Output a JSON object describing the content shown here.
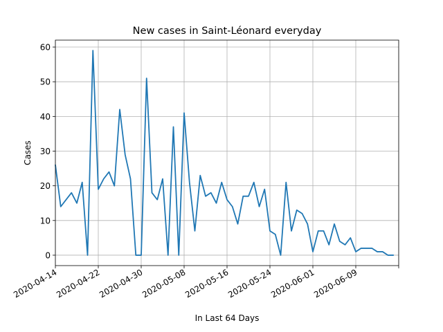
{
  "chart_data": {
    "type": "line",
    "title": "New cases in Saint-Léonard everyday",
    "xlabel": "In Last 64 Days",
    "ylabel": "Cases",
    "grid": true,
    "line_color": "#1f77b4",
    "xlim": [
      "2020-04-14",
      "2020-06-17"
    ],
    "ylim": [
      -3,
      62
    ],
    "x_ticks": [
      "2020-04-14",
      "2020-04-22",
      "2020-04-30",
      "2020-05-08",
      "2020-05-16",
      "2020-05-24",
      "2020-06-01",
      "2020-06-09",
      "2020-06-17"
    ],
    "x_tick_labels": [
      "2020-04-14",
      "2020-04-22",
      "2020-04-30",
      "2020-05-08",
      "2020-05-16",
      "2020-05-24",
      "2020-06-01",
      "2020-06-09",
      ""
    ],
    "y_ticks": [
      0,
      10,
      20,
      30,
      40,
      50,
      60
    ],
    "y_tick_labels": [
      "0",
      "10",
      "20",
      "30",
      "40",
      "50",
      "60"
    ],
    "series": [
      {
        "x": [
          "2020-04-14",
          "2020-04-15",
          "2020-04-16",
          "2020-04-17",
          "2020-04-18",
          "2020-04-19",
          "2020-04-20",
          "2020-04-21",
          "2020-04-22",
          "2020-04-23",
          "2020-04-24",
          "2020-04-25",
          "2020-04-26",
          "2020-04-27",
          "2020-04-28",
          "2020-04-29",
          "2020-04-30",
          "2020-05-01",
          "2020-05-02",
          "2020-05-03",
          "2020-05-04",
          "2020-05-05",
          "2020-05-06",
          "2020-05-07",
          "2020-05-08",
          "2020-05-09",
          "2020-05-10",
          "2020-05-11",
          "2020-05-12",
          "2020-05-13",
          "2020-05-14",
          "2020-05-15",
          "2020-05-16",
          "2020-05-17",
          "2020-05-18",
          "2020-05-19",
          "2020-05-20",
          "2020-05-21",
          "2020-05-22",
          "2020-05-23",
          "2020-05-24",
          "2020-05-25",
          "2020-05-26",
          "2020-05-27",
          "2020-05-28",
          "2020-05-29",
          "2020-05-30",
          "2020-05-31",
          "2020-06-01",
          "2020-06-02",
          "2020-06-03",
          "2020-06-04",
          "2020-06-05",
          "2020-06-06",
          "2020-06-07",
          "2020-06-08",
          "2020-06-09",
          "2020-06-10",
          "2020-06-11",
          "2020-06-12",
          "2020-06-13",
          "2020-06-14",
          "2020-06-15",
          "2020-06-16"
        ],
        "y": [
          26,
          14,
          16,
          18,
          15,
          21,
          0,
          59,
          19,
          22,
          24,
          20,
          42,
          29,
          22,
          0,
          0,
          51,
          18,
          16,
          22,
          0,
          37,
          0,
          41,
          21,
          7,
          23,
          17,
          18,
          15,
          21,
          16,
          14,
          9,
          17,
          17,
          21,
          14,
          19,
          7,
          6,
          0,
          21,
          7,
          13,
          12,
          9,
          1,
          7,
          7,
          3,
          9,
          4,
          3,
          5,
          1,
          2,
          2,
          2,
          1,
          1,
          0,
          0
        ]
      }
    ]
  }
}
